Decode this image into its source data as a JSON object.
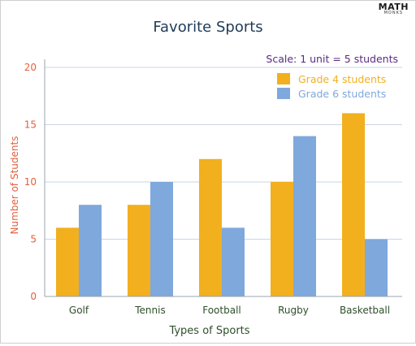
{
  "logo": {
    "main": "MATH",
    "sub": "MONKS"
  },
  "chart_data": {
    "type": "bar",
    "title": "Favorite Sports",
    "subtitle": "Scale: 1 unit = 5 students",
    "xlabel": "Types of Sports",
    "ylabel": "Number of Students",
    "categories": [
      "Golf",
      "Tennis",
      "Football",
      "Rugby",
      "Basketball"
    ],
    "ylim": [
      0,
      20
    ],
    "yticks": [
      0,
      5,
      10,
      15,
      20
    ],
    "grid": true,
    "legend_position": "top-right",
    "series": [
      {
        "name": "Grade 4 students",
        "color": "#f2b01e",
        "values": [
          6,
          8,
          12,
          10,
          16
        ]
      },
      {
        "name": "Grade 6 students",
        "color": "#7fa8dc",
        "values": [
          8,
          10,
          6,
          14,
          5
        ]
      }
    ],
    "colors": {
      "title": "#1f3b57",
      "subtitle": "#5a2a82",
      "ylabel": "#e2603f",
      "ytick": "#e2603f",
      "xtick": "#2e4f2a",
      "xlabel": "#2e4f2a",
      "grid": "#c9d6e6",
      "axis": "#9aa4ad"
    }
  }
}
